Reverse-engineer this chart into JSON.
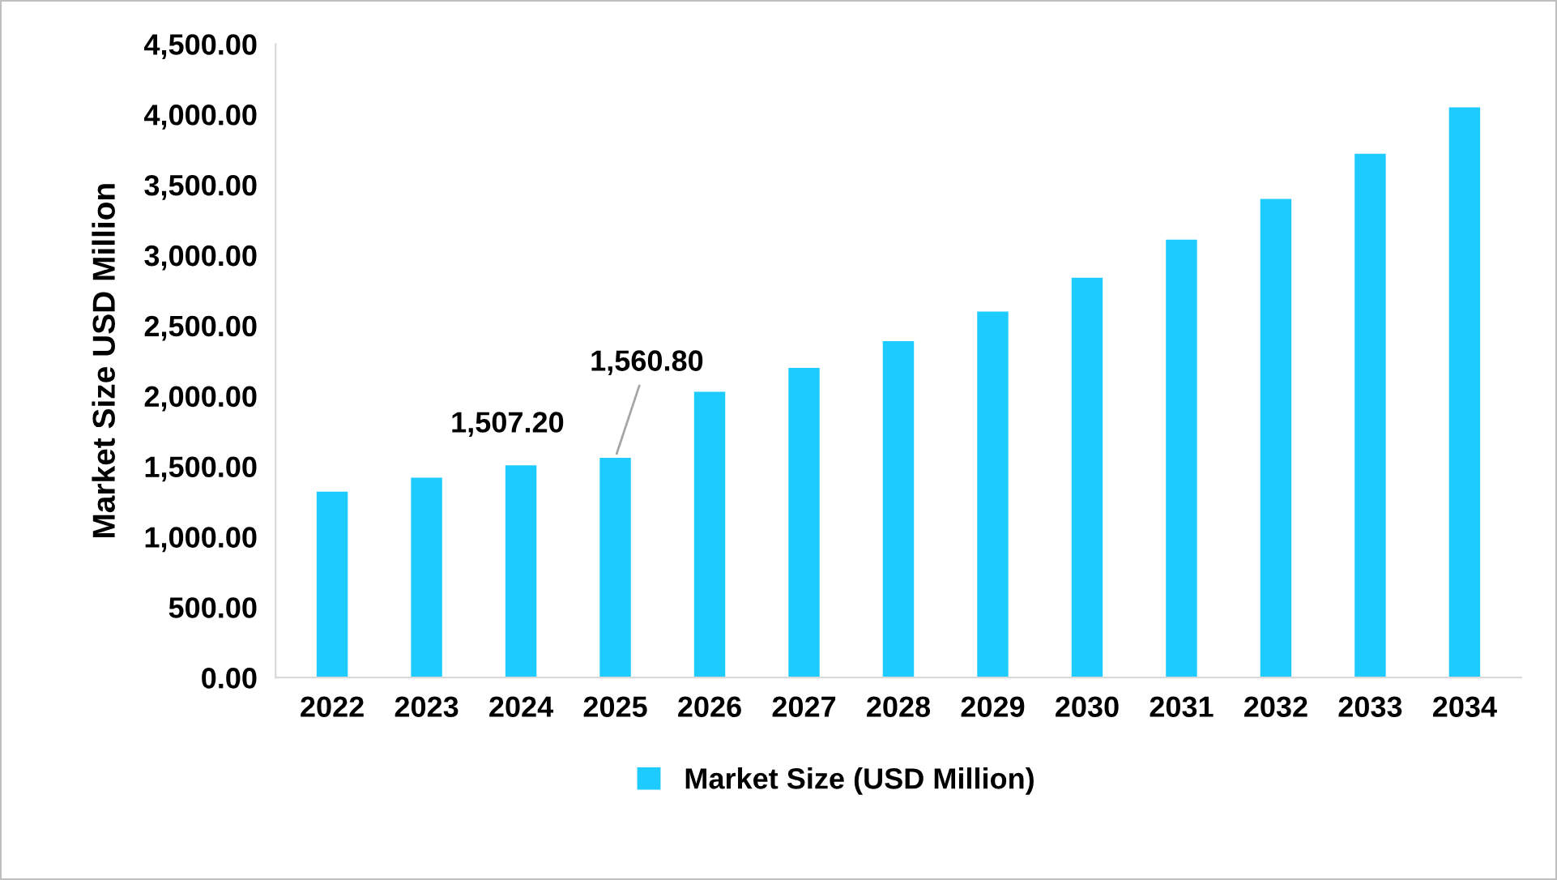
{
  "chart_data": {
    "type": "bar",
    "ylabel": "Market Size USD Million",
    "categories": [
      "2022",
      "2023",
      "2024",
      "2025",
      "2026",
      "2027",
      "2028",
      "2029",
      "2030",
      "2031",
      "2032",
      "2033",
      "2034"
    ],
    "series": [
      {
        "name": "Market Size (USD Million)",
        "color": "#1ecbff",
        "values": [
          1320,
          1420,
          1507.2,
          1560.8,
          2030,
          2200,
          2390,
          2600,
          2840,
          3110,
          3400,
          3720,
          4050
        ],
        "value_labels": [
          null,
          null,
          "1,507.20",
          "1,560.80",
          null,
          null,
          null,
          null,
          null,
          null,
          null,
          null,
          null
        ]
      }
    ],
    "ylim": [
      0,
      4500
    ],
    "yticks": [
      {
        "value": 0,
        "label": "0.00"
      },
      {
        "value": 500,
        "label": "500.00"
      },
      {
        "value": 1000,
        "label": "1,000.00"
      },
      {
        "value": 1500,
        "label": "1,500.00"
      },
      {
        "value": 2000,
        "label": "2,000.00"
      },
      {
        "value": 2500,
        "label": "2,500.00"
      },
      {
        "value": 3000,
        "label": "3,000.00"
      },
      {
        "value": 3500,
        "label": "3,500.00"
      },
      {
        "value": 4000,
        "label": "4,000.00"
      },
      {
        "value": 4500,
        "label": "4,500.00"
      }
    ],
    "grid": false,
    "legend": "bottom"
  }
}
